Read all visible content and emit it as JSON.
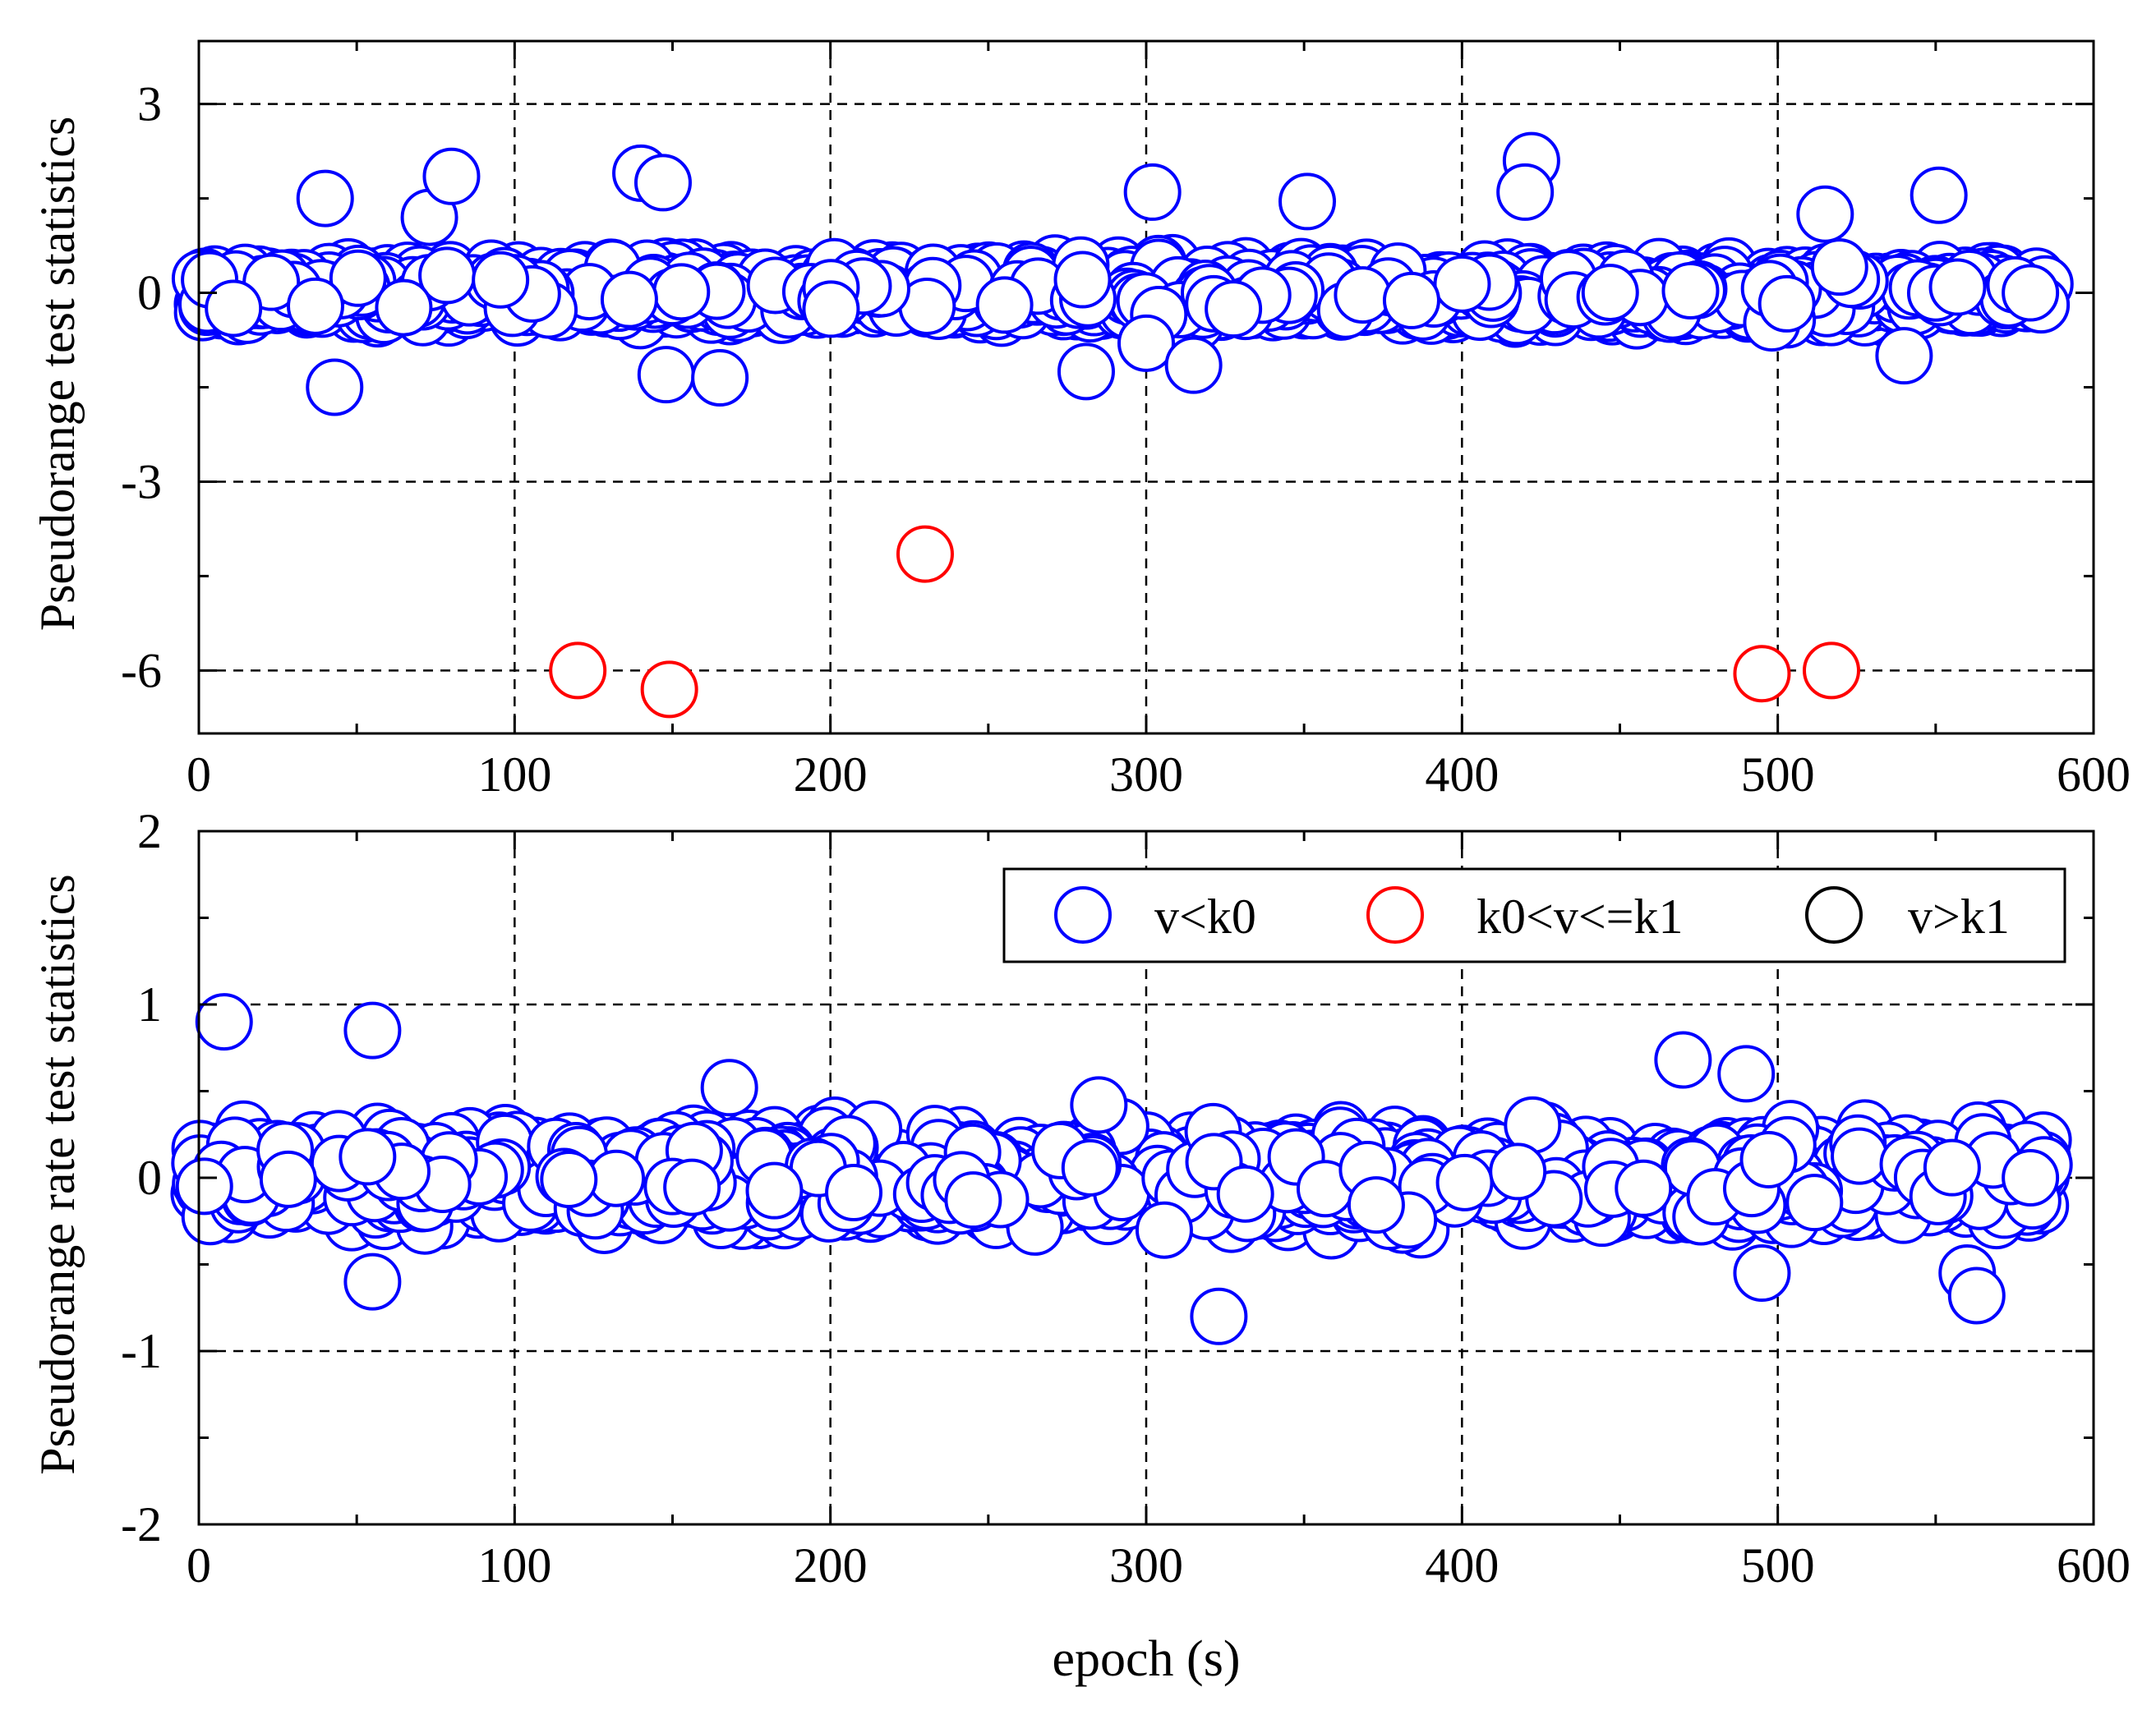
{
  "chart_data": [
    {
      "type": "scatter",
      "title": "",
      "xlabel": "",
      "ylabel": "Pseudorange test statistics",
      "xlim": [
        0,
        600
      ],
      "ylim": [
        -7,
        4
      ],
      "x_ticks": [
        "0",
        "100",
        "200",
        "300",
        "400",
        "500",
        "600"
      ],
      "y_ticks": [
        "3",
        "0",
        "-3",
        "-6"
      ],
      "y_tick_values": [
        3,
        0,
        -3,
        -6
      ],
      "grid": true,
      "series": [
        {
          "name": "v<k0",
          "color": "#0000ff",
          "band": {
            "x_start": 0,
            "x_end": 585,
            "spread": 0.55
          },
          "highlights": [
            {
              "x": 40,
              "y": 1.5
            },
            {
              "x": 43,
              "y": -1.5
            },
            {
              "x": 73,
              "y": 1.2
            },
            {
              "x": 80,
              "y": 1.85
            },
            {
              "x": 140,
              "y": 1.9
            },
            {
              "x": 147,
              "y": 1.75
            },
            {
              "x": 148,
              "y": -1.3
            },
            {
              "x": 165,
              "y": -1.35
            },
            {
              "x": 302,
              "y": 1.6
            },
            {
              "x": 300,
              "y": -0.8
            },
            {
              "x": 281,
              "y": -1.25
            },
            {
              "x": 315,
              "y": -1.15
            },
            {
              "x": 351,
              "y": 1.45
            },
            {
              "x": 422,
              "y": 2.1
            },
            {
              "x": 420,
              "y": 1.6
            },
            {
              "x": 515,
              "y": 1.25
            },
            {
              "x": 551,
              "y": 1.55
            },
            {
              "x": 540,
              "y": -1.0
            },
            {
              "x": 580,
              "y": 0.0
            }
          ]
        },
        {
          "name": "k0<v<=k1",
          "color": "#ff0000",
          "points": [
            {
              "x": 120,
              "y": -6.0
            },
            {
              "x": 149,
              "y": -6.3
            },
            {
              "x": 230,
              "y": -4.15
            },
            {
              "x": 495,
              "y": -6.05
            },
            {
              "x": 517,
              "y": -6.0
            }
          ]
        },
        {
          "name": "v>k1",
          "color": "#000000",
          "points": []
        }
      ]
    },
    {
      "type": "scatter",
      "title": "",
      "xlabel": "epoch (s)",
      "ylabel": "Pseudorange rate test statistics",
      "xlim": [
        0,
        600
      ],
      "ylim": [
        -2,
        2
      ],
      "x_ticks": [
        "0",
        "100",
        "200",
        "300",
        "400",
        "500",
        "600"
      ],
      "y_ticks": [
        "2",
        "1",
        "0",
        "-1",
        "-2"
      ],
      "y_tick_values": [
        2,
        1,
        0,
        -1,
        -2
      ],
      "grid": true,
      "legend": {
        "placement": "top-right",
        "entries": [
          "v<k0",
          "k0<v<=k1",
          "v>k1"
        ]
      },
      "series": [
        {
          "name": "v<k0",
          "color": "#0000ff",
          "band": {
            "x_start": 0,
            "x_end": 585,
            "spread": 0.35
          },
          "highlights": [
            {
              "x": 8,
              "y": 0.9
            },
            {
              "x": 55,
              "y": 0.85
            },
            {
              "x": 55,
              "y": -0.6
            },
            {
              "x": 168,
              "y": 0.52
            },
            {
              "x": 285,
              "y": 0.42
            },
            {
              "x": 323,
              "y": -0.8
            },
            {
              "x": 470,
              "y": 0.68
            },
            {
              "x": 490,
              "y": 0.6
            },
            {
              "x": 495,
              "y": -0.55
            },
            {
              "x": 560,
              "y": -0.55
            },
            {
              "x": 563,
              "y": -0.68
            },
            {
              "x": 580,
              "y": 0.0
            }
          ]
        },
        {
          "name": "k0<v<=k1",
          "color": "#ff0000",
          "points": []
        },
        {
          "name": "v>k1",
          "color": "#000000",
          "points": []
        }
      ]
    }
  ]
}
